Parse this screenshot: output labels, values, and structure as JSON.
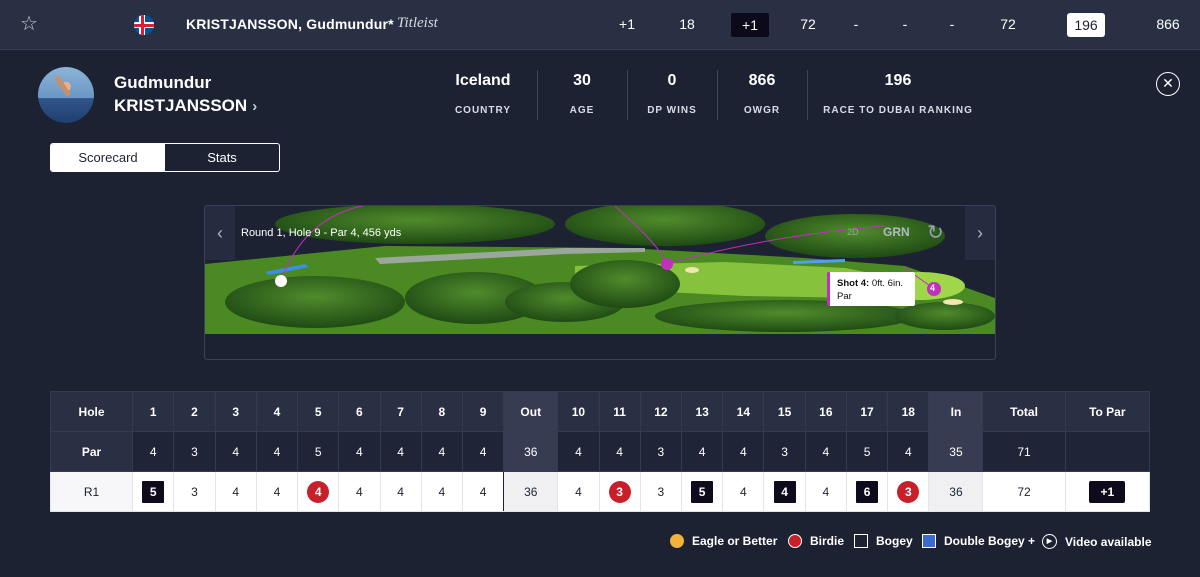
{
  "top_row": {
    "player_name": "KRISTJANSSON, Gudmundur*",
    "sponsor": "Titleist",
    "to_par": "+1",
    "thru": "18",
    "today": "+1",
    "round1": "72",
    "round2": "-",
    "round3": "-",
    "round4": "-",
    "total": "72",
    "ranking": "196",
    "owgr": "866"
  },
  "profile": {
    "first_name": "Gudmundur",
    "last_name": "KRISTJANSSON",
    "stats": [
      {
        "value": "Iceland",
        "label": "COUNTRY"
      },
      {
        "value": "30",
        "label": "AGE"
      },
      {
        "value": "0",
        "label": "DP WINS"
      },
      {
        "value": "866",
        "label": "OWGR"
      },
      {
        "value": "196",
        "label": "RACE TO DUBAI RANKING"
      }
    ]
  },
  "tabs": {
    "scorecard": "Scorecard",
    "stats": "Stats"
  },
  "map": {
    "title": "Round 1, Hole 9 - Par 4, 456 yds",
    "view_2d": "2D",
    "view_grn": "GRN",
    "shot_label": "Shot 4:",
    "shot_distance": "0ft. 6in.",
    "shot_result": "Par",
    "shot_marker": "4"
  },
  "scorecard": {
    "holes": [
      "Hole",
      "1",
      "2",
      "3",
      "4",
      "5",
      "6",
      "7",
      "8",
      "9",
      "Out",
      "10",
      "11",
      "12",
      "13",
      "14",
      "15",
      "16",
      "17",
      "18",
      "In",
      "Total",
      "To Par"
    ],
    "par": [
      "Par",
      "4",
      "3",
      "4",
      "4",
      "5",
      "4",
      "4",
      "4",
      "4",
      "36",
      "4",
      "4",
      "3",
      "4",
      "4",
      "3",
      "4",
      "5",
      "4",
      "35",
      "71",
      ""
    ],
    "r1": [
      "R1",
      "5",
      "3",
      "4",
      "4",
      "4",
      "4",
      "4",
      "4",
      "4",
      "36",
      "4",
      "3",
      "3",
      "5",
      "4",
      "4",
      "4",
      "6",
      "3",
      "36",
      "72",
      "+1"
    ]
  },
  "legend": {
    "eagle": "Eagle or Better",
    "birdie": "Birdie",
    "bogey": "Bogey",
    "double_bogey": "Double Bogey +",
    "video": "Video available"
  },
  "colors": {
    "background": "#1d2233",
    "birdie": "#c8202a",
    "bogey": "#100b1c",
    "eagle": "#f0b43a",
    "double_bogey": "#3c6ad0",
    "shot_track": "#c12fbd"
  }
}
